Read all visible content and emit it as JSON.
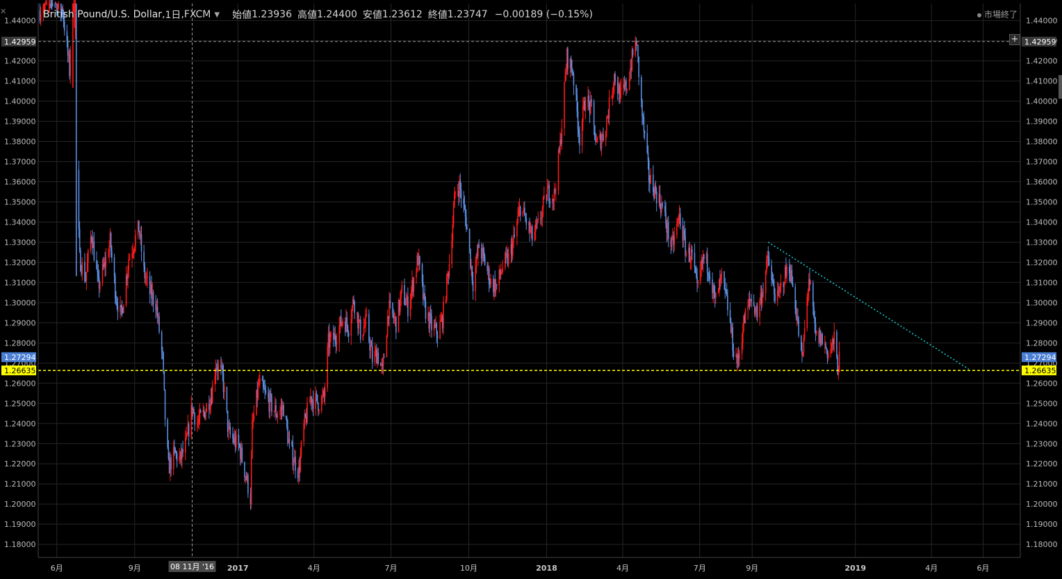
{
  "header": {
    "symbol": "British Pound/U.S. Dollar",
    "interval": "1日",
    "exchange": "FXCM",
    "open_label": "始値",
    "open": "1.23936",
    "high_label": "高値",
    "high": "1.24400",
    "low_label": "安値",
    "low": "1.23612",
    "close_label": "終値",
    "close": "1.23747",
    "change": "−0.00189 (−0.15%)",
    "market_status": "市場終了"
  },
  "colors": {
    "background": "#000000",
    "grid": "#262626",
    "up": "#ff1a1a",
    "down": "#5b8ee0",
    "support_line": "#ffff00",
    "trend_line": "#19c8d0",
    "crosshair": "#9a9a9a"
  },
  "chart_data": {
    "type": "candlestick",
    "title": "British Pound/U.S. Dollar, 1日, FXCM",
    "ylim": [
      1.1735,
      1.4485
    ],
    "yticks": [
      "1.44000",
      "1.43000",
      "1.42000",
      "1.41000",
      "1.40000",
      "1.39000",
      "1.38000",
      "1.37000",
      "1.36000",
      "1.35000",
      "1.34000",
      "1.33000",
      "1.32000",
      "1.31000",
      "1.30000",
      "1.29000",
      "1.28000",
      "1.27000",
      "1.26000",
      "1.25000",
      "1.24000",
      "1.23000",
      "1.22000",
      "1.21000",
      "1.20000",
      "1.19000",
      "1.18000"
    ],
    "xticks": [
      {
        "label": "6月",
        "date": "2016-06-01"
      },
      {
        "label": "9月",
        "date": "2016-09-01"
      },
      {
        "label": "2017",
        "date": "2017-01-01"
      },
      {
        "label": "4月",
        "date": "2017-04-01"
      },
      {
        "label": "7月",
        "date": "2017-07-01"
      },
      {
        "label": "10月",
        "date": "2017-10-01"
      },
      {
        "label": "2018",
        "date": "2018-01-01"
      },
      {
        "label": "4月",
        "date": "2018-04-01"
      },
      {
        "label": "7月",
        "date": "2018-07-01"
      },
      {
        "label": "9月",
        "date": "2018-09-01"
      },
      {
        "label": "2019",
        "date": "2019-01-01"
      },
      {
        "label": "4月",
        "date": "2019-04-01"
      },
      {
        "label": "6月",
        "date": "2019-06-01"
      }
    ],
    "xlim": [
      "2016-05-10",
      "2019-07-15"
    ],
    "price_path": [
      [
        "2016-05-12",
        1.445
      ],
      [
        "2016-05-25",
        1.46
      ],
      [
        "2016-06-08",
        1.445
      ],
      [
        "2016-06-16",
        1.415
      ],
      [
        "2016-06-23",
        1.5
      ],
      [
        "2016-06-24",
        1.365
      ],
      [
        "2016-06-28",
        1.322
      ],
      [
        "2016-07-05",
        1.312
      ],
      [
        "2016-07-12",
        1.335
      ],
      [
        "2016-07-20",
        1.308
      ],
      [
        "2016-07-27",
        1.318
      ],
      [
        "2016-08-03",
        1.33
      ],
      [
        "2016-08-10",
        1.303
      ],
      [
        "2016-08-16",
        1.293
      ],
      [
        "2016-08-25",
        1.322
      ],
      [
        "2016-09-06",
        1.337
      ],
      [
        "2016-09-12",
        1.315
      ],
      [
        "2016-09-19",
        1.305
      ],
      [
        "2016-09-26",
        1.3
      ],
      [
        "2016-10-04",
        1.272
      ],
      [
        "2016-10-07",
        1.243
      ],
      [
        "2016-10-11",
        1.218
      ],
      [
        "2016-10-18",
        1.225
      ],
      [
        "2016-10-25",
        1.222
      ],
      [
        "2016-11-01",
        1.23
      ],
      [
        "2016-11-08",
        1.248
      ],
      [
        "2016-11-14",
        1.24
      ],
      [
        "2016-11-22",
        1.245
      ],
      [
        "2016-12-01",
        1.255
      ],
      [
        "2016-12-06",
        1.27
      ],
      [
        "2016-12-14",
        1.263
      ],
      [
        "2016-12-21",
        1.235
      ],
      [
        "2017-01-03",
        1.228
      ],
      [
        "2017-01-10",
        1.215
      ],
      [
        "2017-01-16",
        1.203
      ],
      [
        "2017-01-18",
        1.238
      ],
      [
        "2017-01-26",
        1.26
      ],
      [
        "2017-02-01",
        1.255
      ],
      [
        "2017-02-08",
        1.25
      ],
      [
        "2017-02-16",
        1.245
      ],
      [
        "2017-02-24",
        1.248
      ],
      [
        "2017-03-03",
        1.228
      ],
      [
        "2017-03-14",
        1.216
      ],
      [
        "2017-03-20",
        1.238
      ],
      [
        "2017-03-28",
        1.253
      ],
      [
        "2017-04-07",
        1.25
      ],
      [
        "2017-04-13",
        1.253
      ],
      [
        "2017-04-18",
        1.28
      ],
      [
        "2017-04-26",
        1.283
      ],
      [
        "2017-05-05",
        1.292
      ],
      [
        "2017-05-12",
        1.288
      ],
      [
        "2017-05-18",
        1.302
      ],
      [
        "2017-05-26",
        1.285
      ],
      [
        "2017-06-02",
        1.29
      ],
      [
        "2017-06-09",
        1.272
      ],
      [
        "2017-06-15",
        1.275
      ],
      [
        "2017-06-21",
        1.265
      ],
      [
        "2017-06-28",
        1.297
      ],
      [
        "2017-07-07",
        1.29
      ],
      [
        "2017-07-14",
        1.305
      ],
      [
        "2017-07-21",
        1.298
      ],
      [
        "2017-08-02",
        1.322
      ],
      [
        "2017-08-10",
        1.297
      ],
      [
        "2017-08-18",
        1.288
      ],
      [
        "2017-08-25",
        1.285
      ],
      [
        "2017-08-31",
        1.292
      ],
      [
        "2017-09-08",
        1.32
      ],
      [
        "2017-09-15",
        1.355
      ],
      [
        "2017-09-20",
        1.358
      ],
      [
        "2017-09-28",
        1.34
      ],
      [
        "2017-10-06",
        1.31
      ],
      [
        "2017-10-13",
        1.328
      ],
      [
        "2017-10-20",
        1.32
      ],
      [
        "2017-10-27",
        1.31
      ],
      [
        "2017-11-03",
        1.308
      ],
      [
        "2017-11-10",
        1.318
      ],
      [
        "2017-11-17",
        1.322
      ],
      [
        "2017-11-24",
        1.332
      ],
      [
        "2017-12-01",
        1.348
      ],
      [
        "2017-12-08",
        1.34
      ],
      [
        "2017-12-15",
        1.332
      ],
      [
        "2017-12-22",
        1.338
      ],
      [
        "2018-01-02",
        1.355
      ],
      [
        "2018-01-10",
        1.353
      ],
      [
        "2018-01-17",
        1.378
      ],
      [
        "2018-01-25",
        1.422
      ],
      [
        "2018-02-01",
        1.415
      ],
      [
        "2018-02-09",
        1.382
      ],
      [
        "2018-02-16",
        1.402
      ],
      [
        "2018-02-23",
        1.395
      ],
      [
        "2018-03-01",
        1.378
      ],
      [
        "2018-03-09",
        1.383
      ],
      [
        "2018-03-15",
        1.395
      ],
      [
        "2018-03-22",
        1.413
      ],
      [
        "2018-03-29",
        1.402
      ],
      [
        "2018-04-06",
        1.408
      ],
      [
        "2018-04-13",
        1.423
      ],
      [
        "2018-04-17",
        1.43
      ],
      [
        "2018-04-24",
        1.393
      ],
      [
        "2018-05-02",
        1.362
      ],
      [
        "2018-05-10",
        1.355
      ],
      [
        "2018-05-18",
        1.347
      ],
      [
        "2018-05-29",
        1.327
      ],
      [
        "2018-06-07",
        1.343
      ],
      [
        "2018-06-15",
        1.325
      ],
      [
        "2018-06-22",
        1.323
      ],
      [
        "2018-06-28",
        1.305
      ],
      [
        "2018-07-05",
        1.322
      ],
      [
        "2018-07-12",
        1.318
      ],
      [
        "2018-07-19",
        1.3
      ],
      [
        "2018-07-27",
        1.312
      ],
      [
        "2018-08-03",
        1.298
      ],
      [
        "2018-08-10",
        1.277
      ],
      [
        "2018-08-15",
        1.27
      ],
      [
        "2018-08-22",
        1.29
      ],
      [
        "2018-08-30",
        1.302
      ],
      [
        "2018-09-07",
        1.295
      ],
      [
        "2018-09-14",
        1.308
      ],
      [
        "2018-09-20",
        1.322
      ],
      [
        "2018-09-24",
        1.31
      ],
      [
        "2018-10-01",
        1.301
      ],
      [
        "2018-10-08",
        1.312
      ],
      [
        "2018-10-15",
        1.318
      ],
      [
        "2018-10-22",
        1.3
      ],
      [
        "2018-10-30",
        1.27
      ],
      [
        "2018-11-07",
        1.313
      ],
      [
        "2018-11-15",
        1.283
      ],
      [
        "2018-11-22",
        1.282
      ],
      [
        "2018-11-30",
        1.275
      ],
      [
        "2018-12-07",
        1.281
      ],
      [
        "2018-12-11",
        1.268
      ],
      [
        "2018-12-14",
        1.273
      ]
    ],
    "support_line": {
      "value": 1.26635,
      "label": "1.26635"
    },
    "crosshair": {
      "price": 1.42959,
      "price_label": "1.42959",
      "date": "2016-11-08",
      "date_label": "08 11月 '16"
    },
    "last_price": {
      "value": 1.27294,
      "label": "1.27294"
    },
    "trendline": {
      "start": [
        "2018-09-20",
        1.33
      ],
      "end": [
        "2019-05-15",
        1.267
      ]
    }
  }
}
